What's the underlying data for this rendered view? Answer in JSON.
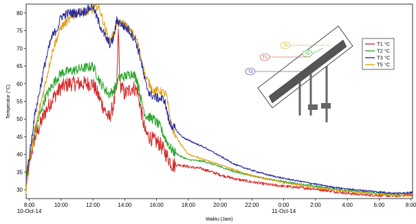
{
  "chart_data": {
    "type": "line",
    "title": "",
    "xlabel": "Waktu (Jam)",
    "ylabel": "Temperatur (°C)",
    "xlim_hours": [
      7.8,
      32.1
    ],
    "ylim": [
      27.5,
      82.5
    ],
    "y_ticks": [
      30,
      35,
      40,
      45,
      50,
      55,
      60,
      65,
      70,
      75,
      80
    ],
    "x_ticks": [
      {
        "hour": 8,
        "label": "8:00"
      },
      {
        "hour": 10,
        "label": "10:00"
      },
      {
        "hour": 12,
        "label": "12:00"
      },
      {
        "hour": 14,
        "label": "14:00"
      },
      {
        "hour": 16,
        "label": "16:00"
      },
      {
        "hour": 18,
        "label": "18:00"
      },
      {
        "hour": 20,
        "label": "20:00"
      },
      {
        "hour": 22,
        "label": "22:00"
      },
      {
        "hour": 24,
        "label": "0:00"
      },
      {
        "hour": 26,
        "label": "2:00"
      },
      {
        "hour": 28,
        "label": "4:00"
      },
      {
        "hour": 30,
        "label": "6:00"
      },
      {
        "hour": 32,
        "label": "8:00"
      }
    ],
    "date_labels": [
      {
        "hour": 8,
        "label": "10-Oct-14"
      },
      {
        "hour": 24,
        "label": "11-Oct-14"
      }
    ],
    "grid": false,
    "legend_position": "top-right",
    "series": [
      {
        "name": "T1 °C",
        "color": "#d42a2a",
        "noise": 2.2,
        "points": [
          [
            7.8,
            33
          ],
          [
            8.3,
            44
          ],
          [
            9.0,
            52
          ],
          [
            9.5,
            56
          ],
          [
            10.0,
            59
          ],
          [
            10.5,
            60
          ],
          [
            11.0,
            60
          ],
          [
            11.5,
            60
          ],
          [
            12.0,
            60
          ],
          [
            12.5,
            55
          ],
          [
            13.0,
            50
          ],
          [
            13.3,
            54
          ],
          [
            13.5,
            59
          ],
          [
            13.6,
            75
          ],
          [
            13.7,
            60
          ],
          [
            14.0,
            57
          ],
          [
            14.5,
            59
          ],
          [
            14.8,
            58
          ],
          [
            15.0,
            53
          ],
          [
            15.3,
            46
          ],
          [
            15.8,
            44
          ],
          [
            16.2,
            43
          ],
          [
            16.6,
            40
          ],
          [
            17.0,
            37
          ],
          [
            17.5,
            37
          ],
          [
            18.0,
            36.5
          ],
          [
            18.8,
            36
          ],
          [
            19.5,
            35
          ],
          [
            20.0,
            34.2
          ],
          [
            21.0,
            33
          ],
          [
            22.0,
            32.2
          ],
          [
            23.0,
            31.5
          ],
          [
            24.0,
            31
          ],
          [
            25.0,
            30.6
          ],
          [
            26.0,
            30.2
          ],
          [
            27.0,
            29.6
          ],
          [
            28.0,
            29
          ],
          [
            29.0,
            28.6
          ],
          [
            30.0,
            28.4
          ],
          [
            31.0,
            28.2
          ],
          [
            31.7,
            28.5
          ],
          [
            32.1,
            28.6
          ]
        ]
      },
      {
        "name": "T2 °C",
        "color": "#2aa52a",
        "noise": 1.4,
        "points": [
          [
            7.8,
            34
          ],
          [
            8.3,
            46
          ],
          [
            9.0,
            56
          ],
          [
            9.5,
            60
          ],
          [
            10.0,
            63
          ],
          [
            10.5,
            63.5
          ],
          [
            11.0,
            64
          ],
          [
            11.5,
            64.5
          ],
          [
            12.0,
            65
          ],
          [
            12.5,
            60
          ],
          [
            13.0,
            57
          ],
          [
            13.3,
            58
          ],
          [
            13.7,
            62
          ],
          [
            14.0,
            62
          ],
          [
            14.5,
            63
          ],
          [
            14.8,
            61
          ],
          [
            15.0,
            56
          ],
          [
            15.3,
            51
          ],
          [
            15.8,
            50
          ],
          [
            16.2,
            48
          ],
          [
            16.6,
            44
          ],
          [
            17.0,
            41
          ],
          [
            17.5,
            39.5
          ],
          [
            18.0,
            38.5
          ],
          [
            19.0,
            38
          ],
          [
            20.0,
            36.5
          ],
          [
            21.0,
            35
          ],
          [
            22.0,
            34
          ],
          [
            23.0,
            33
          ],
          [
            24.0,
            32.3
          ],
          [
            25.0,
            31.6
          ],
          [
            26.0,
            31
          ],
          [
            27.0,
            30.3
          ],
          [
            28.0,
            29.8
          ],
          [
            29.0,
            29.4
          ],
          [
            30.0,
            29
          ],
          [
            31.0,
            28.8
          ],
          [
            32.1,
            29.1
          ]
        ]
      },
      {
        "name": "T3 °C",
        "color": "#2a2a9a",
        "noise": 1.3,
        "points": [
          [
            7.8,
            32
          ],
          [
            8.3,
            50
          ],
          [
            9.0,
            66
          ],
          [
            9.4,
            73
          ],
          [
            9.8,
            76
          ],
          [
            10.0,
            79
          ],
          [
            10.5,
            80
          ],
          [
            11.0,
            80
          ],
          [
            11.5,
            80.5
          ],
          [
            12.0,
            82
          ],
          [
            12.3,
            78
          ],
          [
            12.8,
            73
          ],
          [
            13.1,
            71
          ],
          [
            13.3,
            73
          ],
          [
            13.5,
            78
          ],
          [
            14.0,
            76
          ],
          [
            14.3,
            75
          ],
          [
            14.7,
            72
          ],
          [
            15.0,
            67
          ],
          [
            15.3,
            60
          ],
          [
            15.6,
            57
          ],
          [
            16.0,
            56
          ],
          [
            16.5,
            55.5
          ],
          [
            16.8,
            49
          ],
          [
            17.2,
            47
          ],
          [
            17.6,
            45
          ],
          [
            18.0,
            44
          ],
          [
            19.0,
            42
          ],
          [
            20.0,
            39.5
          ],
          [
            21.0,
            37
          ],
          [
            22.0,
            35.5
          ],
          [
            23.0,
            34.2
          ],
          [
            24.0,
            33.2
          ],
          [
            25.0,
            32.4
          ],
          [
            26.0,
            31.6
          ],
          [
            27.0,
            30.8
          ],
          [
            28.0,
            30.2
          ],
          [
            29.0,
            29.8
          ],
          [
            30.0,
            29.4
          ],
          [
            31.0,
            29
          ],
          [
            32.1,
            29.3
          ]
        ]
      },
      {
        "name": "T5 °C",
        "color": "#e0a010",
        "noise": 1.2,
        "points": [
          [
            7.8,
            30
          ],
          [
            8.3,
            46
          ],
          [
            9.0,
            60
          ],
          [
            9.5,
            70
          ],
          [
            10.0,
            76
          ],
          [
            10.5,
            78
          ],
          [
            11.0,
            80
          ],
          [
            11.5,
            80
          ],
          [
            12.0,
            81
          ],
          [
            12.3,
            82
          ],
          [
            12.5,
            80
          ],
          [
            13.0,
            72
          ],
          [
            13.3,
            74
          ],
          [
            13.5,
            77
          ],
          [
            14.0,
            77
          ],
          [
            14.5,
            74
          ],
          [
            14.8,
            72
          ],
          [
            15.0,
            68
          ],
          [
            15.3,
            62
          ],
          [
            15.8,
            58
          ],
          [
            16.2,
            58
          ],
          [
            16.6,
            57
          ],
          [
            17.0,
            47
          ],
          [
            17.5,
            43
          ],
          [
            18.0,
            40
          ],
          [
            19.0,
            38.5
          ],
          [
            20.0,
            37
          ],
          [
            21.0,
            35.5
          ],
          [
            22.0,
            34
          ],
          [
            23.0,
            33
          ],
          [
            24.0,
            32
          ],
          [
            25.0,
            31.3
          ],
          [
            26.0,
            30.6
          ],
          [
            27.0,
            30
          ],
          [
            28.0,
            29.5
          ],
          [
            29.0,
            29.1
          ],
          [
            30.0,
            28.7
          ],
          [
            31.0,
            28.4
          ],
          [
            32.1,
            28.2
          ]
        ]
      }
    ]
  },
  "diagram": {
    "labels": [
      "T5",
      "T2",
      "T1",
      "T3"
    ]
  }
}
